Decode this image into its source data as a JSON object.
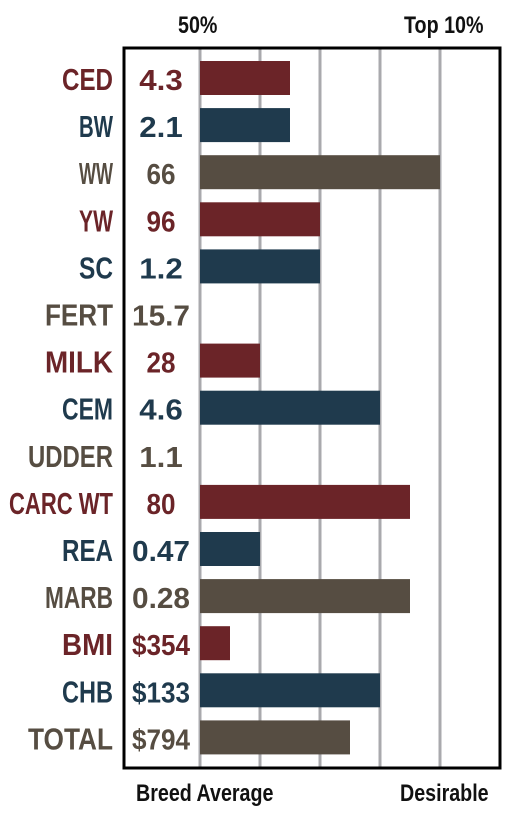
{
  "chart_data": {
    "type": "bar",
    "orientation": "horizontal",
    "top_labels": [
      "50%",
      "Top 10%"
    ],
    "bottom_labels": [
      "Breed Average",
      "Desirable"
    ],
    "categories": [
      "CED",
      "BW",
      "WW",
      "YW",
      "SC",
      "FERT",
      "MILK",
      "CEM",
      "UDDER",
      "CARC WT",
      "REA",
      "MARB",
      "BMI",
      "CHB",
      "TOTAL"
    ],
    "value_labels": [
      "4.3",
      "2.1",
      "66",
      "96",
      "1.2",
      "15.7",
      "28",
      "4.6",
      "1.1",
      "80",
      "0.47",
      "0.28",
      "$354",
      "$133",
      "$794"
    ],
    "bar_lengths": [
      3,
      3,
      8,
      4,
      4,
      0,
      2,
      6,
      0,
      7,
      2,
      7,
      1,
      6,
      5
    ],
    "gridlines": 5,
    "colors": [
      "#6b2428",
      "#1f3a4d",
      "#564d42",
      "#6b2428",
      "#1f3a4d",
      "#564d42",
      "#6b2428",
      "#1f3a4d",
      "#564d42",
      "#6b2428",
      "#1f3a4d",
      "#564d42",
      "#6b2428",
      "#1f3a4d",
      "#564d42"
    ],
    "grid_color": "#a9a9ad",
    "frame_color": "#000000"
  }
}
